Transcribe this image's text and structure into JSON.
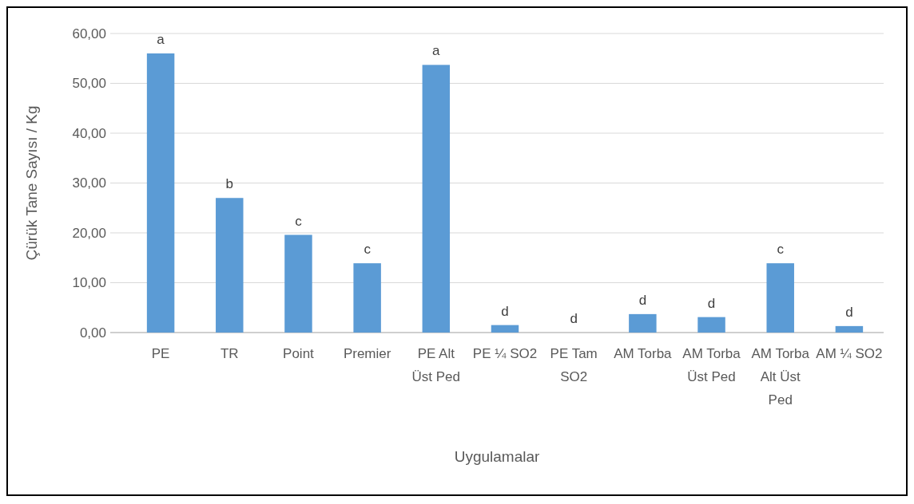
{
  "chart_data": {
    "type": "bar",
    "xlabel": "Uygulamalar",
    "ylabel": "Çürük Tane Sayısı / Kg",
    "categories": [
      "PE",
      "TR",
      "Point",
      "Premier",
      "PE Alt Üst Ped",
      "PE ¼ SO2",
      "PE Tam SO2",
      "AM Torba",
      "AM Torba Üst Ped",
      "AM Torba Alt Üst Ped",
      "AM ¼ SO2"
    ],
    "values": [
      56.0,
      27.0,
      19.6,
      13.9,
      53.7,
      1.5,
      0,
      3.7,
      3.1,
      13.9,
      1.3
    ],
    "value_labels": [
      "a",
      "b",
      "c",
      "c",
      "a",
      "d",
      "d",
      "d",
      "d",
      "c",
      "d"
    ],
    "color": "#5b9bd5",
    "ylim": [
      0,
      60
    ],
    "yticks": [
      {
        "value": 0,
        "label": "0,00"
      },
      {
        "value": 10,
        "label": "10,00"
      },
      {
        "value": 20,
        "label": "20,00"
      },
      {
        "value": 30,
        "label": "30,00"
      },
      {
        "value": 40,
        "label": "40,00"
      },
      {
        "value": 50,
        "label": "50,00"
      },
      {
        "value": 60,
        "label": "60,00"
      }
    ],
    "grid": "y"
  }
}
